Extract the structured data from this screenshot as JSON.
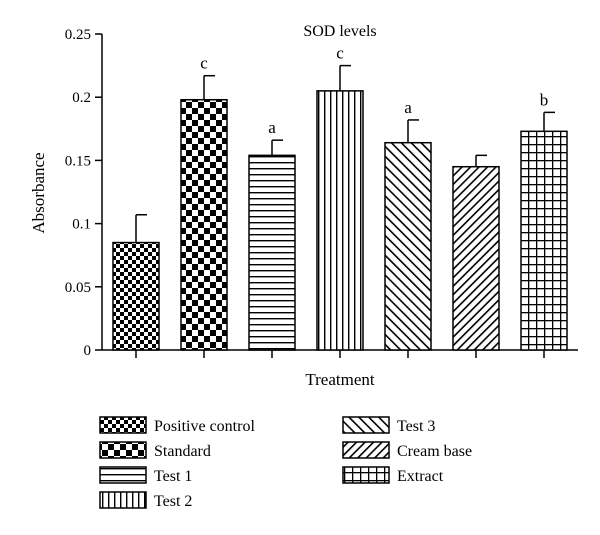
{
  "chart_data": {
    "type": "bar",
    "title": "SOD levels",
    "xlabel": "Treatment",
    "ylabel": "Absorbance",
    "ylim": [
      0,
      0.25
    ],
    "yticks": [
      0,
      0.05,
      0.1,
      0.15,
      0.2,
      0.25
    ],
    "ytick_labels": [
      "0",
      "0.05",
      "0.1",
      "0.15",
      "0.2",
      "0.25"
    ],
    "grid": false,
    "legend_position": "bottom",
    "categories": [
      "Positive control",
      "Standard",
      "Test 1",
      "Test 2",
      "Test 3",
      "Cream base",
      "Extract"
    ],
    "values": [
      0.085,
      0.198,
      0.154,
      0.205,
      0.164,
      0.145,
      0.173
    ],
    "errors": [
      0.022,
      0.019,
      0.012,
      0.02,
      0.018,
      0.009,
      0.015
    ],
    "significance": [
      "",
      "c",
      "a",
      "c",
      "a",
      "",
      "b"
    ],
    "patterns": [
      "checker-fine",
      "checker-coarse",
      "horizontal",
      "vertical",
      "diagonal-up",
      "diagonal-down",
      "grid"
    ]
  }
}
